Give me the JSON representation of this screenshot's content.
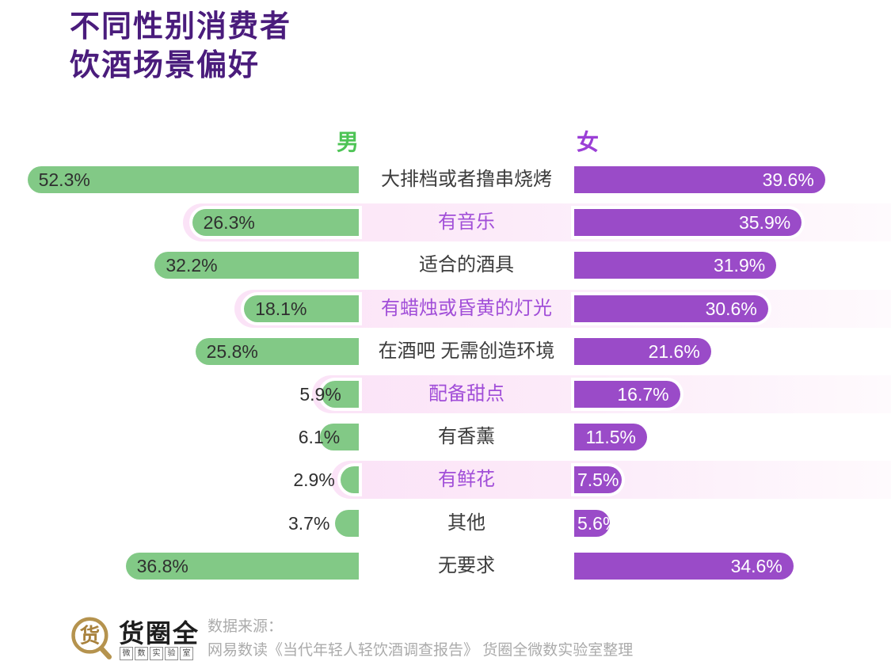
{
  "title": {
    "line1": "不同性别消费者",
    "line2": "饮酒场景偏好"
  },
  "legend": {
    "male": "男",
    "female": "女"
  },
  "chart_data": {
    "type": "bar",
    "orientation": "horizontal-diverging",
    "title": "不同性别消费者饮酒场景偏好",
    "unit": "%",
    "categories": [
      "大排档或者撸串烧烤",
      "有音乐",
      "适合的酒具",
      "有蜡烛或昏黄的灯光",
      "在酒吧 无需创造环境",
      "配备甜点",
      "有香薰",
      "有鲜花",
      "其他",
      "无要求"
    ],
    "series": [
      {
        "name": "男",
        "values": [
          52.3,
          26.3,
          32.2,
          18.1,
          25.8,
          5.9,
          6.1,
          2.9,
          3.7,
          36.8
        ]
      },
      {
        "name": "女",
        "values": [
          39.6,
          35.9,
          31.9,
          30.6,
          21.6,
          16.7,
          11.5,
          7.5,
          5.6,
          34.6
        ]
      }
    ],
    "highlighted_categories": [
      "有音乐",
      "有蜡烛或昏黄的灯光",
      "配备甜点",
      "有鲜花"
    ],
    "highlight_flags": [
      false,
      true,
      false,
      true,
      false,
      true,
      false,
      true,
      false,
      false
    ],
    "value_suffix": "%",
    "legend_position": "top",
    "grid": false,
    "xlim": [
      0,
      55
    ]
  },
  "colors": {
    "green": "#82c986",
    "purple": "#9a4bc8",
    "male-header": "#4dc455",
    "female-header": "#9b3fd6",
    "title": "#4a1c7c",
    "label-dark": "#3c3c3c",
    "label-purple": "#a14ed8",
    "highlight-pink": "#fbe3f7",
    "gold": "#b5934e"
  },
  "footer": {
    "logo_char": "货",
    "logo_text": "货圈全",
    "logo_sub": "微数实验室",
    "source_label": "数据来源：",
    "source_line": "网易数读《当代年轻人轻饮酒调查报告》 货圈全微数实验室整理"
  }
}
